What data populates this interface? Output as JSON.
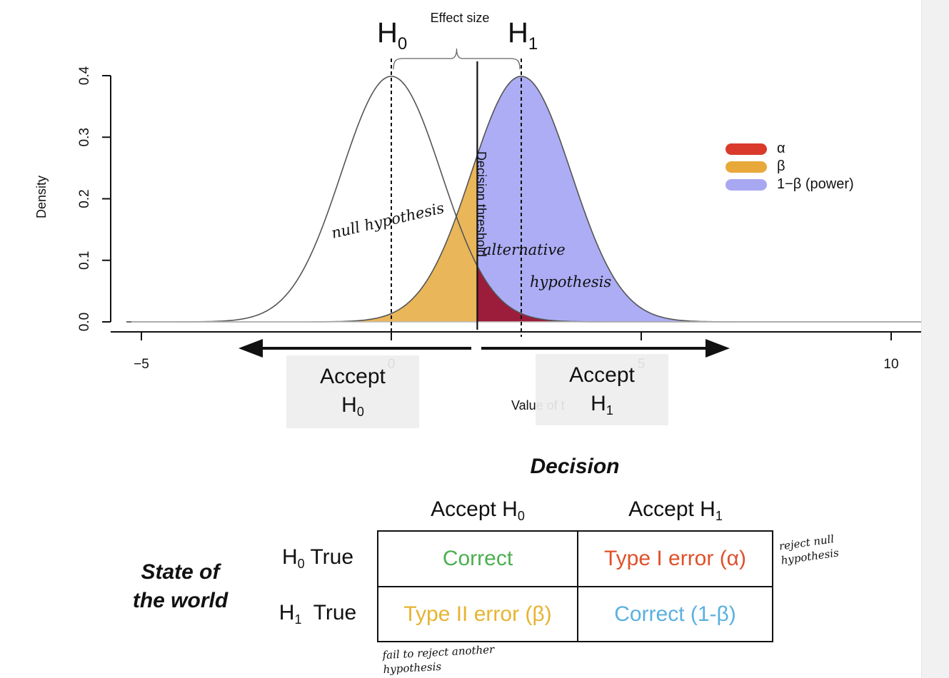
{
  "chart_data": {
    "type": "area",
    "title": "",
    "xlabel": "Value of t",
    "ylabel": "Density",
    "xlim": [
      -5.5,
      10.6
    ],
    "ylim": [
      0,
      0.4
    ],
    "x_ticks": [
      -5,
      0,
      5,
      10
    ],
    "y_ticks": [
      0.0,
      0.1,
      0.2,
      0.3,
      0.4
    ],
    "x_tick_labels": [
      "−5",
      "0",
      "5",
      "10"
    ],
    "y_tick_labels": [
      "0.0",
      "0.1",
      "0.2",
      "0.3",
      "0.4"
    ],
    "distributions": [
      {
        "label": "H0",
        "kind": "normal",
        "mean": 0,
        "sd": 1.0
      },
      {
        "label": "H1",
        "kind": "normal",
        "mean": 2.6,
        "sd": 1.0
      }
    ],
    "decision_threshold": 1.72,
    "decision_threshold_label": "Decision threshold",
    "effect_size_label": "Effect size",
    "legend_position": "right",
    "legend": [
      {
        "label": "α",
        "color": "#d93a2b"
      },
      {
        "label": "β",
        "color": "#e8a93a"
      },
      {
        "label": "1−β (power)",
        "color": "#a8a8f2"
      }
    ],
    "colors": {
      "alpha": "#9c1c3c",
      "beta": "#eab65a",
      "power": "#acadf4",
      "curve": "#555555"
    }
  },
  "hypothesis_labels": {
    "h0_main": "H",
    "h0_sub": "0",
    "h1_main": "H",
    "h1_sub": "1"
  },
  "callouts": {
    "accept_h0_line1": "Accept",
    "accept_h0_main": "H",
    "accept_h0_sub": "0",
    "accept_h1_line1": "Accept",
    "accept_h1_main": "H",
    "accept_h1_sub": "1"
  },
  "annotations": {
    "null_hypothesis": "null hypothesis",
    "alternative_line1": "alternative",
    "alternative_line2": "hypothesis"
  },
  "decision_table": {
    "title": "Decision",
    "col_headers": [
      {
        "main": "Accept H",
        "sub": "0"
      },
      {
        "main": "Accept H",
        "sub": "1"
      }
    ],
    "row_headers": [
      {
        "main": "H",
        "sub": "0",
        "rest": " True"
      },
      {
        "main": "H",
        "sub": "1",
        "rest": "  True"
      }
    ],
    "state_label_line1": "State of",
    "state_label_line2": "the world",
    "cells": [
      {
        "text": "Correct",
        "color": "#4caf50"
      },
      {
        "text": "Type I error (α)",
        "color": "#e0502a"
      },
      {
        "text": "Type II error (β)",
        "color": "#e6b430"
      },
      {
        "text": "Correct (1-β)",
        "color": "#5ab0e0"
      }
    ],
    "notes": {
      "reject_line1": "reject null",
      "reject_line2": "hypothesis",
      "fail_line1": "fail to reject another",
      "fail_line2": "hypothesis"
    }
  }
}
